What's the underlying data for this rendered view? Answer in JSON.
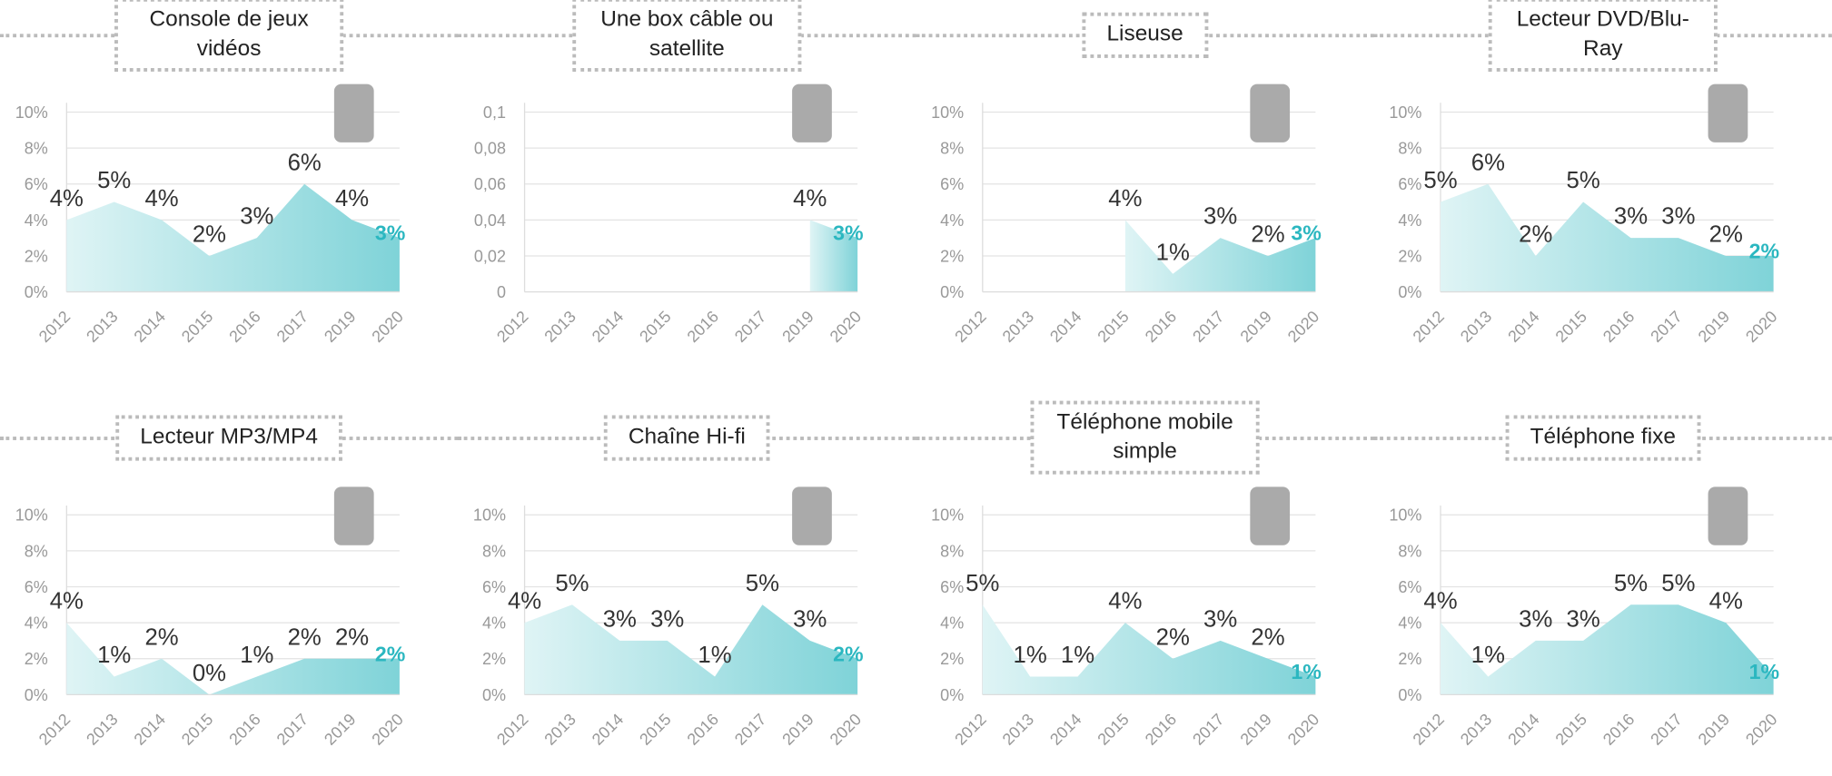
{
  "chart_data": [
    {
      "type": "area",
      "title": "Console de jeux vidéos",
      "categories": [
        "2012",
        "2013",
        "2014",
        "2015",
        "2016",
        "2017",
        "2019",
        "2020"
      ],
      "values": [
        4,
        5,
        4,
        2,
        3,
        6,
        4,
        3
      ],
      "value_labels": [
        "4%",
        "5%",
        "4%",
        "2%",
        "3%",
        "6%",
        "4%",
        "3%"
      ],
      "ylim": [
        0,
        10
      ],
      "yticks": [
        {
          "value": 0,
          "label": "0%"
        },
        {
          "value": 2,
          "label": "2%"
        },
        {
          "value": 4,
          "label": "4%"
        },
        {
          "value": 6,
          "label": "6%"
        },
        {
          "value": 8,
          "label": "8%"
        },
        {
          "value": 10,
          "label": "10%"
        }
      ],
      "grid": true,
      "color": "#7fd3d8"
    },
    {
      "type": "area",
      "title": "Une box câble ou satellite",
      "categories": [
        "2012",
        "2013",
        "2014",
        "2015",
        "2016",
        "2017",
        "2019",
        "2020"
      ],
      "values": [
        null,
        null,
        null,
        null,
        null,
        null,
        0.04,
        0.03
      ],
      "value_labels": [
        null,
        null,
        null,
        null,
        null,
        null,
        "4%",
        "3%"
      ],
      "ylim": [
        0,
        0.1
      ],
      "yticks": [
        0,
        {
          "value": 0.02,
          "label": "0,02"
        },
        {
          "value": 0.04,
          "label": "0,04"
        },
        {
          "value": 0.06,
          "label": "0,06"
        },
        {
          "value": 0.08,
          "label": "0,08"
        },
        {
          "value": 0.1,
          "label": "0,1"
        }
      ],
      "grid": true,
      "color": "#7fd3d8"
    },
    {
      "type": "area",
      "title": "Liseuse",
      "categories": [
        "2012",
        "2013",
        "2014",
        "2015",
        "2016",
        "2017",
        "2019",
        "2020"
      ],
      "values": [
        null,
        null,
        null,
        4,
        1,
        3,
        2,
        3
      ],
      "value_labels": [
        null,
        null,
        null,
        "4%",
        "1%",
        "3%",
        "2%",
        "3%"
      ],
      "ylim": [
        0,
        10
      ],
      "yticks": [
        {
          "value": 0,
          "label": "0%"
        },
        {
          "value": 2,
          "label": "2%"
        },
        {
          "value": 4,
          "label": "4%"
        },
        {
          "value": 6,
          "label": "6%"
        },
        {
          "value": 8,
          "label": "8%"
        },
        {
          "value": 10,
          "label": "10%"
        }
      ],
      "grid": true,
      "color": "#7fd3d8"
    },
    {
      "type": "area",
      "title": "Lecteur DVD/Blu-Ray",
      "categories": [
        "2012",
        "2013",
        "2014",
        "2015",
        "2016",
        "2017",
        "2019",
        "2020"
      ],
      "values": [
        5,
        6,
        2,
        5,
        3,
        3,
        2,
        2
      ],
      "value_labels": [
        "5%",
        "6%",
        "2%",
        "5%",
        "3%",
        "3%",
        "2%",
        "2%"
      ],
      "ylim": [
        0,
        10
      ],
      "yticks": [
        {
          "value": 0,
          "label": "0%"
        },
        {
          "value": 2,
          "label": "2%"
        },
        {
          "value": 4,
          "label": "4%"
        },
        {
          "value": 6,
          "label": "6%"
        },
        {
          "value": 8,
          "label": "8%"
        },
        {
          "value": 10,
          "label": "10%"
        }
      ],
      "grid": true,
      "color": "#7fd3d8"
    },
    {
      "type": "area",
      "title": "Lecteur MP3/MP4",
      "categories": [
        "2012",
        "2013",
        "2014",
        "2015",
        "2016",
        "2017",
        "2019",
        "2020"
      ],
      "values": [
        4,
        1,
        2,
        0,
        1,
        2,
        2,
        2
      ],
      "value_labels": [
        "4%",
        "1%",
        "2%",
        "0%",
        "1%",
        "2%",
        "2%",
        "2%"
      ],
      "ylim": [
        0,
        10
      ],
      "yticks": [
        {
          "value": 0,
          "label": "0%"
        },
        {
          "value": 2,
          "label": "2%"
        },
        {
          "value": 4,
          "label": "4%"
        },
        {
          "value": 6,
          "label": "6%"
        },
        {
          "value": 8,
          "label": "8%"
        },
        {
          "value": 10,
          "label": "10%"
        }
      ],
      "grid": true,
      "color": "#7fd3d8"
    },
    {
      "type": "area",
      "title": "Chaîne Hi-fi",
      "categories": [
        "2012",
        "2013",
        "2014",
        "2015",
        "2016",
        "2017",
        "2019",
        "2020"
      ],
      "values": [
        4,
        5,
        3,
        3,
        1,
        5,
        3,
        2
      ],
      "value_labels": [
        "4%",
        "5%",
        "3%",
        "3%",
        "1%",
        "5%",
        "3%",
        "2%"
      ],
      "ylim": [
        0,
        10
      ],
      "yticks": [
        {
          "value": 0,
          "label": "0%"
        },
        {
          "value": 2,
          "label": "2%"
        },
        {
          "value": 4,
          "label": "4%"
        },
        {
          "value": 6,
          "label": "6%"
        },
        {
          "value": 8,
          "label": "8%"
        },
        {
          "value": 10,
          "label": "10%"
        }
      ],
      "grid": true,
      "color": "#7fd3d8"
    },
    {
      "type": "area",
      "title": "Téléphone mobile simple",
      "categories": [
        "2012",
        "2013",
        "2014",
        "2015",
        "2016",
        "2017",
        "2019",
        "2020"
      ],
      "values": [
        5,
        1,
        1,
        4,
        2,
        3,
        2,
        1
      ],
      "value_labels": [
        "5%",
        "1%",
        "1%",
        "4%",
        "2%",
        "3%",
        "2%",
        "1%"
      ],
      "ylim": [
        0,
        10
      ],
      "yticks": [
        {
          "value": 0,
          "label": "0%"
        },
        {
          "value": 2,
          "label": "2%"
        },
        {
          "value": 4,
          "label": "4%"
        },
        {
          "value": 6,
          "label": "6%"
        },
        {
          "value": 8,
          "label": "8%"
        },
        {
          "value": 10,
          "label": "10%"
        }
      ],
      "grid": true,
      "color": "#7fd3d8"
    },
    {
      "type": "area",
      "title": "Téléphone fixe",
      "categories": [
        "2012",
        "2013",
        "2014",
        "2015",
        "2016",
        "2017",
        "2019",
        "2020"
      ],
      "values": [
        4,
        1,
        3,
        3,
        5,
        5,
        4,
        1
      ],
      "value_labels": [
        "4%",
        "1%",
        "3%",
        "3%",
        "5%",
        "5%",
        "4%",
        "1%"
      ],
      "ylim": [
        0,
        10
      ],
      "yticks": [
        {
          "value": 0,
          "label": "0%"
        },
        {
          "value": 2,
          "label": "2%"
        },
        {
          "value": 4,
          "label": "4%"
        },
        {
          "value": 6,
          "label": "6%"
        },
        {
          "value": 8,
          "label": "8%"
        },
        {
          "value": 10,
          "label": "10%"
        }
      ],
      "grid": true,
      "color": "#7fd3d8"
    }
  ]
}
